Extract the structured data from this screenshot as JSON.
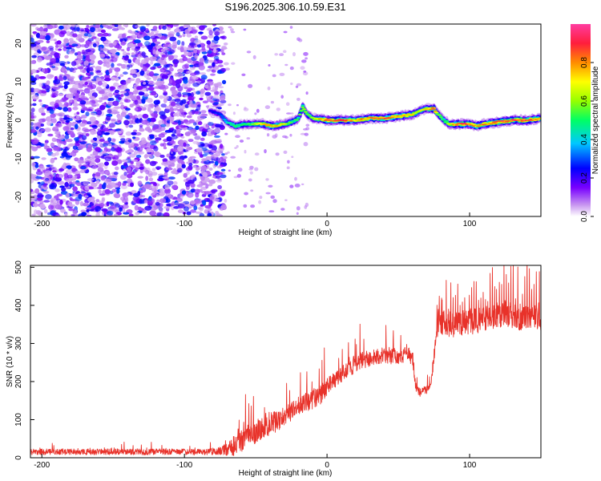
{
  "title": "S196.2025.306.10.59.E31",
  "chart_data": [
    {
      "type": "heatmap",
      "title": "S196.2025.306.10.59.E31",
      "xlabel": "Height of straight line (km)",
      "ylabel": "Frequency (Hz)",
      "xlim": [
        -208,
        150
      ],
      "ylim": [
        -25,
        25
      ],
      "xticks": [
        -200,
        -100,
        0,
        100
      ],
      "yticks": [
        -20,
        -10,
        0,
        10,
        20
      ],
      "colorbar": {
        "label": "Normalized spectral amplitude",
        "range": [
          0,
          1
        ],
        "ticks": [
          0.0,
          0.2,
          0.4,
          0.6,
          0.8
        ],
        "tick_labels": [
          "0.0",
          "0.2",
          "0.4",
          "0.6",
          "0.8"
        ],
        "colors": [
          "#ffffff",
          "#c896f0",
          "#7800ff",
          "#0000ff",
          "#00c8ff",
          "#00ff64",
          "#96ff00",
          "#ffff00",
          "#ff8c00",
          "#ff1e3c",
          "#ff3ca0"
        ]
      },
      "noise_region": {
        "x_range": [
          -208,
          -72
        ],
        "y_range": [
          -25,
          25
        ],
        "amplitude": [
          0.05,
          0.3
        ]
      },
      "ridge": {
        "x": [
          -82,
          -75,
          -70,
          -64,
          -58,
          -52,
          -45,
          -38,
          -30,
          -25,
          -20,
          -17,
          -14,
          -10,
          0,
          10,
          20,
          30,
          40,
          50,
          60,
          66,
          70,
          75,
          78,
          82,
          86,
          90,
          95,
          100,
          105,
          110,
          120,
          130,
          140,
          150
        ],
        "frequency": [
          2.5,
          1.5,
          -0.5,
          -1.5,
          -1.0,
          -1.0,
          -1.0,
          -1.5,
          -1.0,
          -0.5,
          0.5,
          3.5,
          1.5,
          0.5,
          0.0,
          0.0,
          0.0,
          0.5,
          0.5,
          1.0,
          1.5,
          2.5,
          3.0,
          3.0,
          1.5,
          0.0,
          -1.0,
          -1.0,
          -1.0,
          -1.0,
          -1.5,
          -1.0,
          -0.5,
          0.0,
          0.0,
          0.5
        ],
        "amplitude": [
          0.25,
          0.3,
          0.45,
          0.55,
          0.5,
          0.6,
          0.75,
          0.8,
          0.7,
          0.55,
          0.55,
          0.65,
          0.6,
          0.6,
          0.9,
          0.9,
          0.8,
          0.85,
          0.9,
          0.85,
          0.75,
          0.7,
          0.75,
          0.88,
          0.6,
          0.55,
          0.7,
          0.85,
          0.9,
          0.85,
          0.8,
          0.85,
          0.9,
          0.92,
          0.95,
          0.8
        ]
      }
    },
    {
      "type": "line",
      "title": "",
      "xlabel": "Height of straight line (km)",
      "ylabel": "SNR (10 * v/v)",
      "xlim": [
        -208,
        150
      ],
      "ylim": [
        0,
        505
      ],
      "xticks": [
        -200,
        -100,
        0,
        100
      ],
      "yticks": [
        0,
        100,
        200,
        300,
        400,
        500
      ],
      "series": [
        {
          "name": "SNR",
          "color": "#e8322a",
          "x": [
            -208,
            -190,
            -170,
            -150,
            -130,
            -110,
            -90,
            -75,
            -68,
            -64,
            -60,
            -56,
            -52,
            -48,
            -44,
            -40,
            -36,
            -30,
            -24,
            -18,
            -12,
            -6,
            0,
            6,
            12,
            18,
            24,
            30,
            40,
            50,
            55,
            60,
            62,
            63,
            66,
            70,
            73,
            76,
            78,
            85,
            95,
            105,
            115,
            125,
            135,
            145,
            150
          ],
          "y": [
            15,
            16,
            15,
            16,
            15,
            16,
            15,
            18,
            25,
            35,
            55,
            70,
            60,
            75,
            80,
            90,
            95,
            110,
            125,
            140,
            150,
            160,
            185,
            205,
            225,
            240,
            255,
            260,
            270,
            265,
            270,
            265,
            190,
            175,
            170,
            180,
            200,
            300,
            360,
            350,
            355,
            360,
            370,
            380,
            370,
            375,
            370
          ],
          "noise": [
            8,
            8,
            8,
            8,
            8,
            8,
            8,
            10,
            20,
            30,
            40,
            35,
            30,
            30,
            30,
            30,
            30,
            25,
            25,
            25,
            25,
            25,
            25,
            22,
            22,
            22,
            22,
            22,
            22,
            22,
            22,
            22,
            12,
            12,
            12,
            12,
            12,
            25,
            35,
            35,
            35,
            35,
            35,
            35,
            35,
            35,
            35
          ]
        }
      ]
    }
  ]
}
